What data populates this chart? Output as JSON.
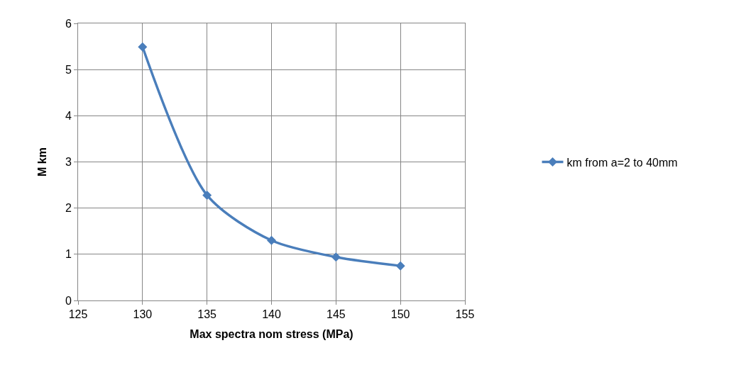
{
  "chart_data": {
    "type": "line",
    "xlabel": "Max spectra nom stress (MPa)",
    "ylabel": "M km",
    "x": [
      130,
      135,
      140,
      145,
      150
    ],
    "series": [
      {
        "name": "km from a=2 to 40mm",
        "color": "#4a7ebb",
        "values": [
          5.49,
          2.28,
          1.3,
          0.94,
          0.75
        ]
      }
    ],
    "xlim": [
      125,
      155
    ],
    "xticks": [
      125,
      130,
      135,
      140,
      145,
      150,
      155
    ],
    "ylim": [
      0,
      6
    ],
    "yticks": [
      0,
      1,
      2,
      3,
      4,
      5,
      6
    ],
    "grid": true,
    "legend": "right",
    "marker": "diamond",
    "line_style": "solid"
  }
}
